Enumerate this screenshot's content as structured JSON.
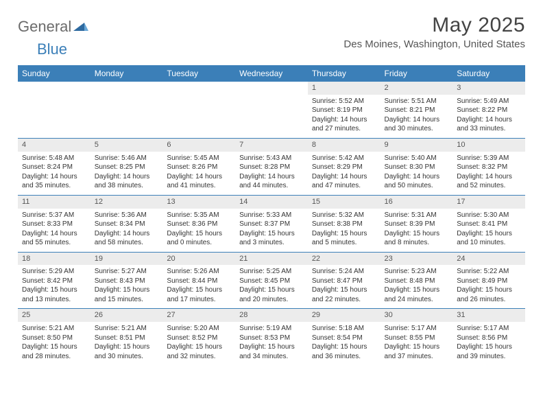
{
  "brand": {
    "general": "General",
    "blue": "Blue"
  },
  "title": "May 2025",
  "location": "Des Moines, Washington, United States",
  "colors": {
    "header_bg": "#3b7fb8",
    "header_text": "#ffffff",
    "daynum_bg": "#ececec",
    "row_divider": "#3b7fb8",
    "body_text": "#333333",
    "background": "#ffffff"
  },
  "typography": {
    "title_fontsize": 30,
    "location_fontsize": 15,
    "weekday_fontsize": 12,
    "cell_fontsize": 10
  },
  "weekdays": [
    "Sunday",
    "Monday",
    "Tuesday",
    "Wednesday",
    "Thursday",
    "Friday",
    "Saturday"
  ],
  "weeks": [
    [
      {
        "day": "",
        "sunrise": "",
        "sunset": "",
        "daylight": ""
      },
      {
        "day": "",
        "sunrise": "",
        "sunset": "",
        "daylight": ""
      },
      {
        "day": "",
        "sunrise": "",
        "sunset": "",
        "daylight": ""
      },
      {
        "day": "",
        "sunrise": "",
        "sunset": "",
        "daylight": ""
      },
      {
        "day": "1",
        "sunrise": "Sunrise: 5:52 AM",
        "sunset": "Sunset: 8:19 PM",
        "daylight": "Daylight: 14 hours and 27 minutes."
      },
      {
        "day": "2",
        "sunrise": "Sunrise: 5:51 AM",
        "sunset": "Sunset: 8:21 PM",
        "daylight": "Daylight: 14 hours and 30 minutes."
      },
      {
        "day": "3",
        "sunrise": "Sunrise: 5:49 AM",
        "sunset": "Sunset: 8:22 PM",
        "daylight": "Daylight: 14 hours and 33 minutes."
      }
    ],
    [
      {
        "day": "4",
        "sunrise": "Sunrise: 5:48 AM",
        "sunset": "Sunset: 8:24 PM",
        "daylight": "Daylight: 14 hours and 35 minutes."
      },
      {
        "day": "5",
        "sunrise": "Sunrise: 5:46 AM",
        "sunset": "Sunset: 8:25 PM",
        "daylight": "Daylight: 14 hours and 38 minutes."
      },
      {
        "day": "6",
        "sunrise": "Sunrise: 5:45 AM",
        "sunset": "Sunset: 8:26 PM",
        "daylight": "Daylight: 14 hours and 41 minutes."
      },
      {
        "day": "7",
        "sunrise": "Sunrise: 5:43 AM",
        "sunset": "Sunset: 8:28 PM",
        "daylight": "Daylight: 14 hours and 44 minutes."
      },
      {
        "day": "8",
        "sunrise": "Sunrise: 5:42 AM",
        "sunset": "Sunset: 8:29 PM",
        "daylight": "Daylight: 14 hours and 47 minutes."
      },
      {
        "day": "9",
        "sunrise": "Sunrise: 5:40 AM",
        "sunset": "Sunset: 8:30 PM",
        "daylight": "Daylight: 14 hours and 50 minutes."
      },
      {
        "day": "10",
        "sunrise": "Sunrise: 5:39 AM",
        "sunset": "Sunset: 8:32 PM",
        "daylight": "Daylight: 14 hours and 52 minutes."
      }
    ],
    [
      {
        "day": "11",
        "sunrise": "Sunrise: 5:37 AM",
        "sunset": "Sunset: 8:33 PM",
        "daylight": "Daylight: 14 hours and 55 minutes."
      },
      {
        "day": "12",
        "sunrise": "Sunrise: 5:36 AM",
        "sunset": "Sunset: 8:34 PM",
        "daylight": "Daylight: 14 hours and 58 minutes."
      },
      {
        "day": "13",
        "sunrise": "Sunrise: 5:35 AM",
        "sunset": "Sunset: 8:36 PM",
        "daylight": "Daylight: 15 hours and 0 minutes."
      },
      {
        "day": "14",
        "sunrise": "Sunrise: 5:33 AM",
        "sunset": "Sunset: 8:37 PM",
        "daylight": "Daylight: 15 hours and 3 minutes."
      },
      {
        "day": "15",
        "sunrise": "Sunrise: 5:32 AM",
        "sunset": "Sunset: 8:38 PM",
        "daylight": "Daylight: 15 hours and 5 minutes."
      },
      {
        "day": "16",
        "sunrise": "Sunrise: 5:31 AM",
        "sunset": "Sunset: 8:39 PM",
        "daylight": "Daylight: 15 hours and 8 minutes."
      },
      {
        "day": "17",
        "sunrise": "Sunrise: 5:30 AM",
        "sunset": "Sunset: 8:41 PM",
        "daylight": "Daylight: 15 hours and 10 minutes."
      }
    ],
    [
      {
        "day": "18",
        "sunrise": "Sunrise: 5:29 AM",
        "sunset": "Sunset: 8:42 PM",
        "daylight": "Daylight: 15 hours and 13 minutes."
      },
      {
        "day": "19",
        "sunrise": "Sunrise: 5:27 AM",
        "sunset": "Sunset: 8:43 PM",
        "daylight": "Daylight: 15 hours and 15 minutes."
      },
      {
        "day": "20",
        "sunrise": "Sunrise: 5:26 AM",
        "sunset": "Sunset: 8:44 PM",
        "daylight": "Daylight: 15 hours and 17 minutes."
      },
      {
        "day": "21",
        "sunrise": "Sunrise: 5:25 AM",
        "sunset": "Sunset: 8:45 PM",
        "daylight": "Daylight: 15 hours and 20 minutes."
      },
      {
        "day": "22",
        "sunrise": "Sunrise: 5:24 AM",
        "sunset": "Sunset: 8:47 PM",
        "daylight": "Daylight: 15 hours and 22 minutes."
      },
      {
        "day": "23",
        "sunrise": "Sunrise: 5:23 AM",
        "sunset": "Sunset: 8:48 PM",
        "daylight": "Daylight: 15 hours and 24 minutes."
      },
      {
        "day": "24",
        "sunrise": "Sunrise: 5:22 AM",
        "sunset": "Sunset: 8:49 PM",
        "daylight": "Daylight: 15 hours and 26 minutes."
      }
    ],
    [
      {
        "day": "25",
        "sunrise": "Sunrise: 5:21 AM",
        "sunset": "Sunset: 8:50 PM",
        "daylight": "Daylight: 15 hours and 28 minutes."
      },
      {
        "day": "26",
        "sunrise": "Sunrise: 5:21 AM",
        "sunset": "Sunset: 8:51 PM",
        "daylight": "Daylight: 15 hours and 30 minutes."
      },
      {
        "day": "27",
        "sunrise": "Sunrise: 5:20 AM",
        "sunset": "Sunset: 8:52 PM",
        "daylight": "Daylight: 15 hours and 32 minutes."
      },
      {
        "day": "28",
        "sunrise": "Sunrise: 5:19 AM",
        "sunset": "Sunset: 8:53 PM",
        "daylight": "Daylight: 15 hours and 34 minutes."
      },
      {
        "day": "29",
        "sunrise": "Sunrise: 5:18 AM",
        "sunset": "Sunset: 8:54 PM",
        "daylight": "Daylight: 15 hours and 36 minutes."
      },
      {
        "day": "30",
        "sunrise": "Sunrise: 5:17 AM",
        "sunset": "Sunset: 8:55 PM",
        "daylight": "Daylight: 15 hours and 37 minutes."
      },
      {
        "day": "31",
        "sunrise": "Sunrise: 5:17 AM",
        "sunset": "Sunset: 8:56 PM",
        "daylight": "Daylight: 15 hours and 39 minutes."
      }
    ]
  ]
}
